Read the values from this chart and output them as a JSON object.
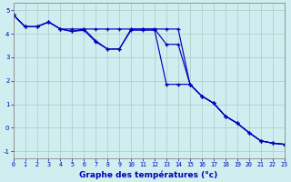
{
  "xlabel": "Graphe des températures (°c)",
  "background_color": "#d0eef0",
  "grid_color": "#b0d0cc",
  "line_color": "#0000bb",
  "hours": [
    0,
    1,
    2,
    3,
    4,
    5,
    6,
    7,
    8,
    9,
    10,
    11,
    12,
    13,
    14,
    15,
    16,
    17,
    18,
    19,
    20,
    21,
    22,
    23
  ],
  "line1": [
    4.8,
    4.3,
    4.3,
    4.5,
    4.2,
    4.2,
    4.2,
    4.2,
    4.2,
    4.2,
    4.2,
    4.2,
    4.2,
    4.2,
    4.2,
    1.85,
    1.35,
    1.05,
    0.5,
    0.2,
    -0.2,
    -0.55,
    -0.65,
    -0.7
  ],
  "line2": [
    4.8,
    4.3,
    4.3,
    4.5,
    4.2,
    4.1,
    4.2,
    3.7,
    3.35,
    3.35,
    4.2,
    4.2,
    4.2,
    3.55,
    3.55,
    1.85,
    1.35,
    1.05,
    0.5,
    0.2,
    -0.2,
    -0.55,
    -0.65,
    -0.7
  ],
  "line3": [
    4.8,
    4.3,
    4.3,
    4.5,
    4.2,
    4.1,
    4.15,
    3.65,
    3.35,
    3.35,
    4.15,
    4.15,
    4.15,
    1.85,
    1.85,
    1.85,
    1.35,
    1.05,
    0.5,
    0.2,
    -0.2,
    -0.55,
    -0.65,
    -0.7
  ],
  "xlim": [
    0,
    23
  ],
  "ylim": [
    -1.3,
    5.3
  ],
  "xticks": [
    0,
    1,
    2,
    3,
    4,
    5,
    6,
    7,
    8,
    9,
    10,
    11,
    12,
    13,
    14,
    15,
    16,
    17,
    18,
    19,
    20,
    21,
    22,
    23
  ],
  "yticks": [
    -1,
    0,
    1,
    2,
    3,
    4,
    5
  ],
  "xlabel_fontsize": 6.5,
  "tick_fontsize": 4.8
}
